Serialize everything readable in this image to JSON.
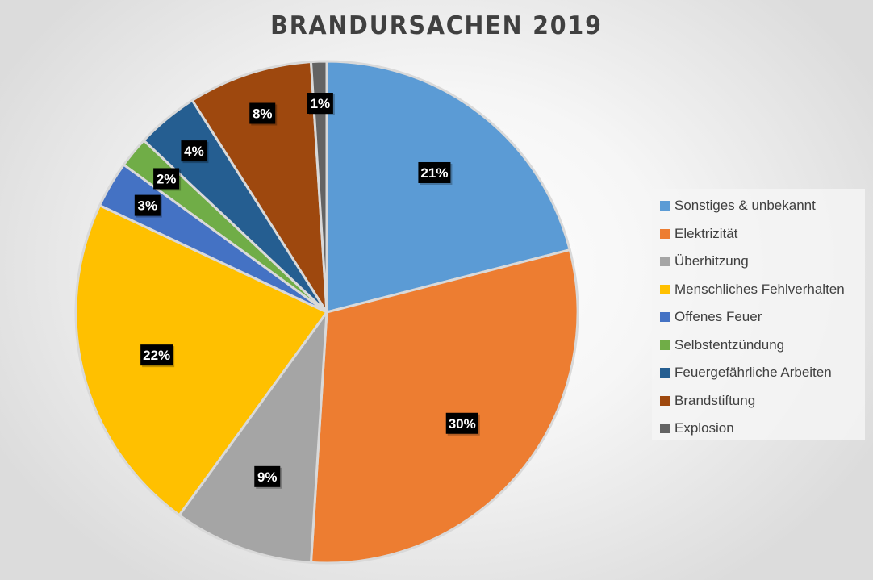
{
  "chart_data": {
    "type": "pie",
    "title": "BRANDURSACHEN 2019",
    "start_angle": "top, clockwise",
    "legend_position": "right",
    "categories": [
      "Sonstiges & unbekannt",
      "Elektrizität",
      "Überhitzung",
      "Menschliches Fehlverhalten",
      "Offenes Feuer",
      "Selbstentzündung",
      "Feuergefährliche Arbeiten",
      "Brandstiftung",
      "Explosion"
    ],
    "values": [
      21,
      30,
      9,
      22,
      3,
      2,
      4,
      8,
      1
    ],
    "data_labels": [
      "21%",
      "30%",
      "9%",
      "22%",
      "3%",
      "2%",
      "4%",
      "8%",
      "1%"
    ],
    "colors": [
      "#5B9BD5",
      "#ED7D31",
      "#A5A5A5",
      "#FFC000",
      "#4472C4",
      "#70AD47",
      "#255E91",
      "#9E480E",
      "#636363"
    ]
  }
}
